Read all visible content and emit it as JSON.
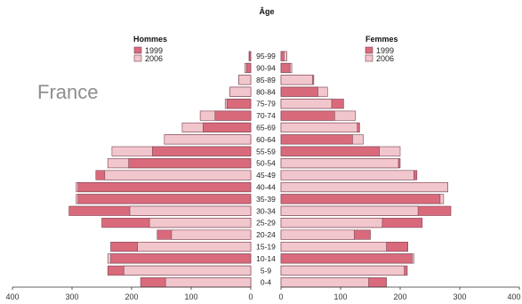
{
  "chart_data": {
    "type": "bar",
    "orientation": "horizontal-pyramid",
    "age_axis_title": "Âge",
    "annotation": "France",
    "left_title": "Hommes",
    "right_title": "Femmes",
    "legend": [
      "1999",
      "2006"
    ],
    "colors": {
      "1999": "#d96a7c",
      "2006": "#f2c6cd",
      "outline": "#7a4450",
      "axis": "#333333"
    },
    "x_ticks_left": [
      "400",
      "300",
      "200",
      "100",
      "0"
    ],
    "x_ticks_right": [
      "0",
      "100",
      "200",
      "300",
      "400"
    ],
    "xlim": [
      0,
      400
    ],
    "categories": [
      "0-4",
      "5-9",
      "10-14",
      "15-19",
      "20-24",
      "25-29",
      "30-34",
      "35-39",
      "40-44",
      "45-49",
      "50-54",
      "55-59",
      "60-64",
      "65-69",
      "70-74",
      "75-79",
      "80-84",
      "85-89",
      "90-94",
      "95-99"
    ],
    "series": [
      {
        "name": "1999",
        "side": "Hommes",
        "values": [
          185,
          240,
          235,
          235,
          157,
          250,
          305,
          290,
          290,
          260,
          205,
          165,
          145,
          80,
          60,
          40,
          35,
          20,
          7,
          2
        ]
      },
      {
        "name": "2006",
        "side": "Hommes",
        "values": [
          143,
          213,
          240,
          190,
          133,
          170,
          203,
          293,
          293,
          245,
          240,
          233,
          145,
          115,
          85,
          43,
          35,
          20,
          10,
          3
        ]
      },
      {
        "name": "1999",
        "side": "Femmes",
        "values": [
          177,
          212,
          220,
          213,
          150,
          237,
          285,
          267,
          280,
          228,
          200,
          165,
          120,
          132,
          90,
          105,
          62,
          55,
          15,
          5
        ]
      },
      {
        "name": "2006",
        "side": "Femmes",
        "values": [
          147,
          207,
          223,
          177,
          123,
          170,
          230,
          273,
          280,
          223,
          197,
          200,
          138,
          128,
          125,
          85,
          78,
          53,
          18,
          10
        ]
      }
    ]
  }
}
